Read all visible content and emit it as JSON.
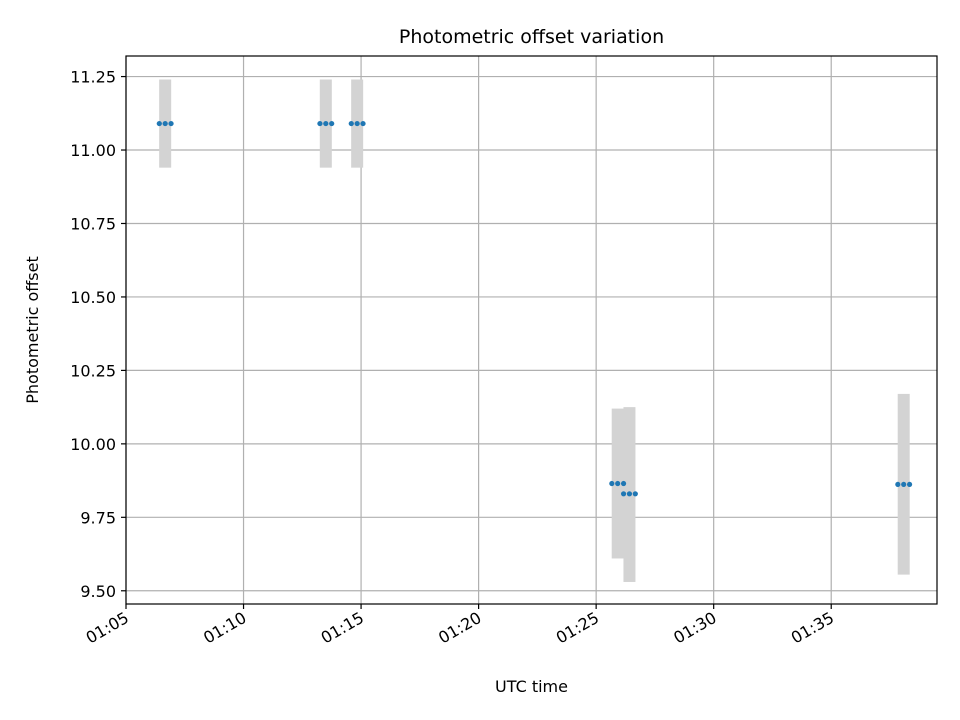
{
  "chart_data": {
    "type": "scatter",
    "title": "Photometric offset variation",
    "xlabel": "UTC time",
    "ylabel": "Photometric offset",
    "x_ticks": [
      "01:05",
      "01:10",
      "01:15",
      "01:20",
      "01:25",
      "01:30",
      "01:35"
    ],
    "x_tick_minutes": [
      65,
      70,
      75,
      80,
      85,
      90,
      95
    ],
    "y_ticks": [
      "9.50",
      "9.75",
      "10.00",
      "10.25",
      "10.50",
      "10.75",
      "11.00",
      "11.25"
    ],
    "xlim": [
      "01:05:00",
      "01:39:30"
    ],
    "ylim": [
      9.455,
      11.32
    ],
    "grid": true,
    "point_color": "#1f77b4",
    "band_color": "#d3d3d3",
    "groups": [
      {
        "time": "01:06:40",
        "y": 11.09,
        "ymin": 10.94,
        "ymax": 11.24,
        "points": [
          "01:06:25",
          "01:06:40",
          "01:06:55"
        ]
      },
      {
        "time": "01:13:30",
        "y": 11.09,
        "ymin": 10.94,
        "ymax": 11.24,
        "points": [
          "01:13:15",
          "01:13:30",
          "01:13:45"
        ]
      },
      {
        "time": "01:14:50",
        "y": 11.09,
        "ymin": 10.94,
        "ymax": 11.24,
        "points": [
          "01:14:35",
          "01:14:50",
          "01:15:05"
        ]
      },
      {
        "time": "01:25:55",
        "y": 9.865,
        "ymin": 9.61,
        "ymax": 10.12,
        "points": [
          "01:25:40",
          "01:25:55",
          "01:26:10"
        ]
      },
      {
        "time": "01:26:25",
        "y": 9.83,
        "ymin": 9.53,
        "ymax": 10.125,
        "points": [
          "01:26:10",
          "01:26:25",
          "01:26:40"
        ]
      },
      {
        "time": "01:38:05",
        "y": 9.862,
        "ymin": 9.555,
        "ymax": 10.17,
        "points": [
          "01:37:50",
          "01:38:05",
          "01:38:20"
        ]
      }
    ]
  }
}
